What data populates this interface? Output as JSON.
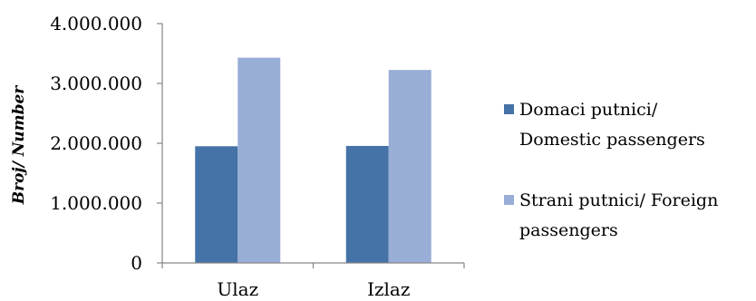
{
  "chart_data": {
    "type": "bar",
    "categories": [
      "Ulaz",
      "Izlaz"
    ],
    "series": [
      {
        "name_lines": [
          "Domaci putnici/",
          "Domestic passengers"
        ],
        "values": [
          1950000,
          1955000
        ],
        "color": "#4572a7"
      },
      {
        "name_lines": [
          "Strani putnici/ Foreign",
          "passengers"
        ],
        "values": [
          3430000,
          3225000
        ],
        "color": "#98aed6"
      }
    ],
    "ylabel": "Broj/ Number",
    "ylim": [
      0,
      4000000
    ],
    "yticks": [
      0,
      1000000,
      2000000,
      3000000,
      4000000
    ],
    "ytick_labels": [
      "0",
      "1.000.000",
      "2.000.000",
      "3.000.000",
      "4.000.000"
    ],
    "grid": false,
    "legend_position": "right"
  }
}
